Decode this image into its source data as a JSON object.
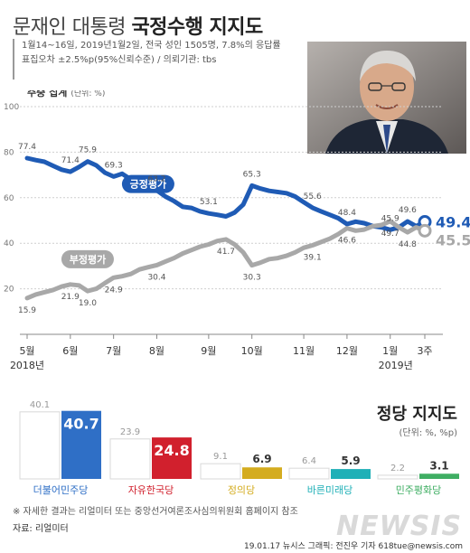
{
  "header": {
    "title_plain": "문재인 대통령",
    "title_bold": "국정수행 지지도",
    "sub1": "1월14~16일, 2019년1월2일, 전국 성인 1505명, 7.8%의 응답률",
    "sub2": "표집오차 ±2.5%p(95%신뢰수준) / 의뢰기관: tbs"
  },
  "footer": {
    "note": "※ 자세한 결과는 리얼미터 또는 중앙선거여론조사심의위원회 홈페이지 참조",
    "source": "자료: 리얼미터",
    "credit": "19.01.17 뉴시스 그래픽: 전진우 기자 618tue@newsis.com",
    "logo": "NEWSIS"
  },
  "party_header": {
    "title": "정당 지지도",
    "unit": "(단위: %, %p)"
  },
  "colors": {
    "positive": "#1f5bb5",
    "negative": "#a8a8a8",
    "minjoo": "#2f6fc6",
    "jayu": "#d1202d",
    "jeongui": "#d4ac1f",
    "bareun": "#1fb0b7",
    "pyeonghwa": "#3fae63"
  },
  "chart_data": [
    {
      "type": "line",
      "title": "주중 집계",
      "unit": "(단위: %)",
      "ylim": [
        0,
        100
      ],
      "yticks": [
        20,
        40,
        60,
        80,
        100
      ],
      "x_ticks": [
        "5월",
        "6월",
        "7월",
        "8월",
        "9월",
        "10월",
        "11월",
        "12월",
        "1월",
        "3주"
      ],
      "x_sublabels": [
        "2018년",
        "2019년"
      ],
      "grid": true,
      "series": [
        {
          "name": "긍정평가",
          "values": [
            77.4,
            76.5,
            75.8,
            74.0,
            72.3,
            71.4,
            73.5,
            75.9,
            74.2,
            71.0,
            69.3,
            70.5,
            68.0,
            66.0,
            64.5,
            63.2,
            60.5,
            58.5,
            56.0,
            55.5,
            54.0,
            53.1,
            52.5,
            51.8,
            53.5,
            57.0,
            65.3,
            64.0,
            63.0,
            62.5,
            62.0,
            60.5,
            58.0,
            55.6,
            54.0,
            52.5,
            51.0,
            48.4,
            49.5,
            48.8,
            47.5,
            47.0,
            45.9,
            47.0,
            49.6,
            47.5,
            49.4
          ],
          "labels": [
            [
              0,
              "77.4"
            ],
            [
              5,
              "71.4"
            ],
            [
              7,
              "75.9"
            ],
            [
              10,
              "69.3"
            ],
            [
              15,
              "63.2"
            ],
            [
              21,
              "53.1"
            ],
            [
              26,
              "65.3"
            ],
            [
              33,
              "55.6"
            ],
            [
              37,
              "48.4"
            ],
            [
              42,
              "45.9"
            ],
            [
              44,
              "49.6"
            ],
            [
              46,
              "49.4%"
            ]
          ]
        },
        {
          "name": "부정평가",
          "values": [
            15.9,
            17.5,
            18.5,
            19.5,
            21.0,
            21.9,
            21.5,
            19.0,
            20.0,
            22.5,
            24.9,
            25.5,
            26.5,
            28.5,
            29.5,
            30.4,
            32.0,
            33.5,
            35.5,
            37.0,
            38.5,
            39.5,
            41.0,
            41.7,
            39.5,
            36.0,
            30.3,
            31.5,
            33.0,
            33.5,
            34.5,
            36.0,
            38.0,
            39.1,
            40.5,
            42.0,
            44.0,
            46.6,
            45.5,
            46.0,
            47.5,
            48.0,
            49.7,
            47.0,
            44.8,
            47.0,
            45.5
          ],
          "labels": [
            [
              0,
              "15.9"
            ],
            [
              5,
              "21.9"
            ],
            [
              7,
              "19.0"
            ],
            [
              10,
              "24.9"
            ],
            [
              15,
              "30.4"
            ],
            [
              23,
              "41.7"
            ],
            [
              26,
              "30.3"
            ],
            [
              33,
              "39.1"
            ],
            [
              37,
              "46.6"
            ],
            [
              42,
              "49.7"
            ],
            [
              44,
              "44.8"
            ],
            [
              46,
              "45.5%"
            ]
          ]
        }
      ]
    },
    {
      "type": "bar",
      "title": "정당 지지도",
      "categories": [
        "더불어민주당",
        "자유한국당",
        "정의당",
        "바른미래당",
        "민주평화당"
      ],
      "series": [
        {
          "values": [
            40.1,
            23.9,
            9.1,
            6.4,
            2.2
          ]
        },
        {
          "values": [
            40.7,
            24.8,
            6.9,
            5.9,
            3.1
          ]
        }
      ]
    }
  ]
}
